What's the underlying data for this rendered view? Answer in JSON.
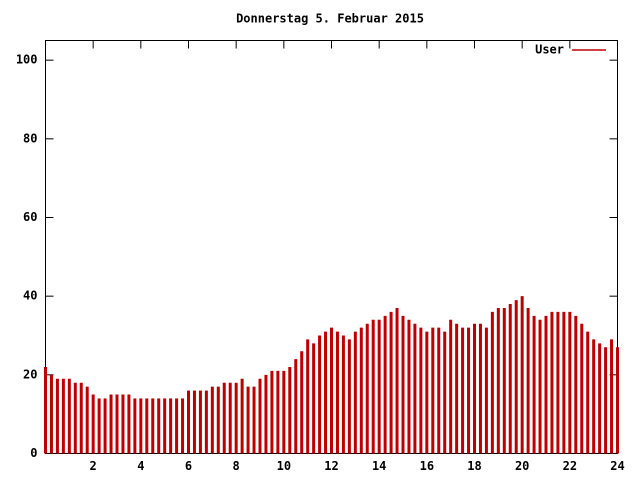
{
  "chart_data": {
    "type": "impulse",
    "title": "Donnerstag 5. Februar 2015",
    "x": [
      0,
      0.25,
      0.5,
      0.75,
      1,
      1.25,
      1.5,
      1.75,
      2,
      2.25,
      2.5,
      2.75,
      3,
      3.25,
      3.5,
      3.75,
      4,
      4.25,
      4.5,
      4.75,
      5,
      5.25,
      5.5,
      5.75,
      6,
      6.25,
      6.5,
      6.75,
      7,
      7.25,
      7.5,
      7.75,
      8,
      8.25,
      8.5,
      8.75,
      9,
      9.25,
      9.5,
      9.75,
      10,
      10.25,
      10.5,
      10.75,
      11,
      11.25,
      11.5,
      11.75,
      12,
      12.25,
      12.5,
      12.75,
      13,
      13.25,
      13.5,
      13.75,
      14,
      14.25,
      14.5,
      14.75,
      15,
      15.25,
      15.5,
      15.75,
      16,
      16.25,
      16.5,
      16.75,
      17,
      17.25,
      17.5,
      17.75,
      18,
      18.25,
      18.5,
      18.75,
      19,
      19.25,
      19.5,
      19.75,
      20,
      20.25,
      20.5,
      20.75,
      21,
      21.25,
      21.5,
      21.75,
      22,
      22.25,
      22.5,
      22.75,
      23,
      23.25,
      23.5,
      23.75,
      24
    ],
    "series": [
      {
        "name": "User",
        "color": "#c00000",
        "values": [
          22,
          20,
          19,
          19,
          19,
          18,
          18,
          17,
          15,
          14,
          14,
          15,
          15,
          15,
          15,
          14,
          14,
          14,
          14,
          14,
          14,
          14,
          14,
          14,
          16,
          16,
          16,
          16,
          17,
          17,
          18,
          18,
          18,
          19,
          17,
          17,
          19,
          20,
          21,
          21,
          21,
          22,
          24,
          26,
          29,
          28,
          30,
          31,
          32,
          31,
          30,
          29,
          31,
          32,
          33,
          34,
          34,
          35,
          36,
          37,
          35,
          34,
          33,
          32,
          31,
          32,
          32,
          31,
          34,
          33,
          32,
          32,
          33,
          33,
          32,
          36,
          37,
          37,
          38,
          39,
          40,
          37,
          35,
          34,
          35,
          36,
          36,
          36,
          36,
          35,
          33,
          31,
          29,
          28,
          27,
          29,
          27
        ]
      }
    ],
    "xlim": [
      0,
      24
    ],
    "xticks": [
      2,
      4,
      6,
      8,
      10,
      12,
      14,
      16,
      18,
      20,
      22,
      24
    ],
    "ylim": [
      0,
      105
    ],
    "yticks": [
      0,
      20,
      40,
      60,
      80,
      100
    ],
    "legend": "top-right"
  }
}
